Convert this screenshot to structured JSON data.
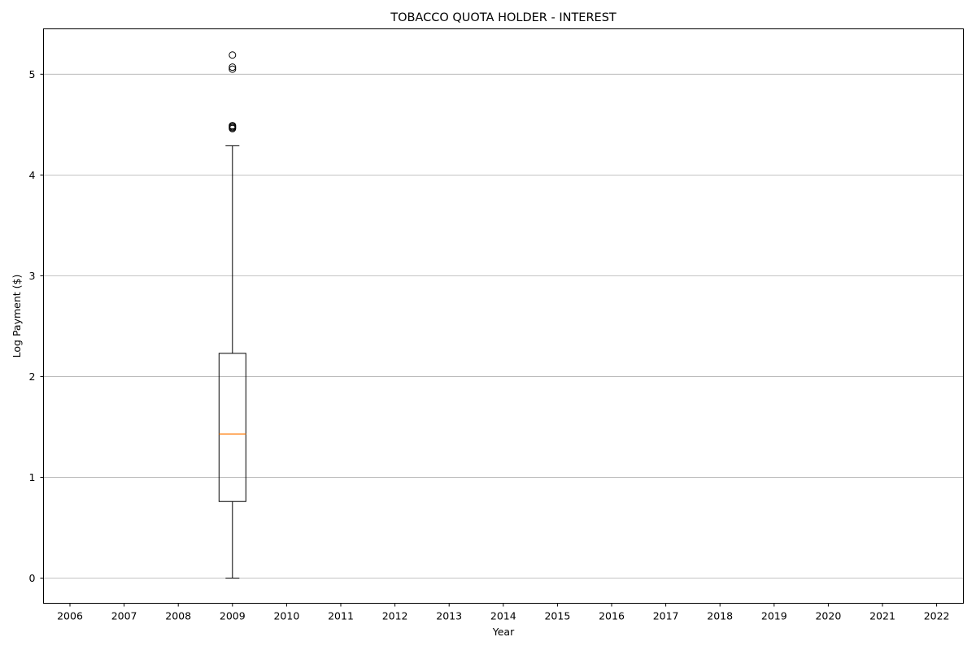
{
  "chart_data": {
    "type": "box",
    "title": "TOBACCO QUOTA HOLDER - INTEREST",
    "xlabel": "Year",
    "ylabel": "Log Payment ($)",
    "categories": [
      "2006",
      "2007",
      "2008",
      "2009",
      "2010",
      "2011",
      "2012",
      "2013",
      "2014",
      "2015",
      "2016",
      "2017",
      "2018",
      "2019",
      "2020",
      "2021",
      "2022"
    ],
    "y_ticks": [
      0,
      1,
      2,
      3,
      4,
      5
    ],
    "ylim": [
      -0.25,
      5.45
    ],
    "grid": "y",
    "median_color": "#ff7f0e",
    "boxes": [
      {
        "category": "2009",
        "whisker_low": 0.0,
        "q1": 0.76,
        "median": 1.43,
        "q3": 2.23,
        "whisker_high": 4.29,
        "fliers": [
          4.46,
          4.47,
          4.48,
          4.49,
          5.05,
          5.07,
          5.19
        ]
      }
    ]
  }
}
